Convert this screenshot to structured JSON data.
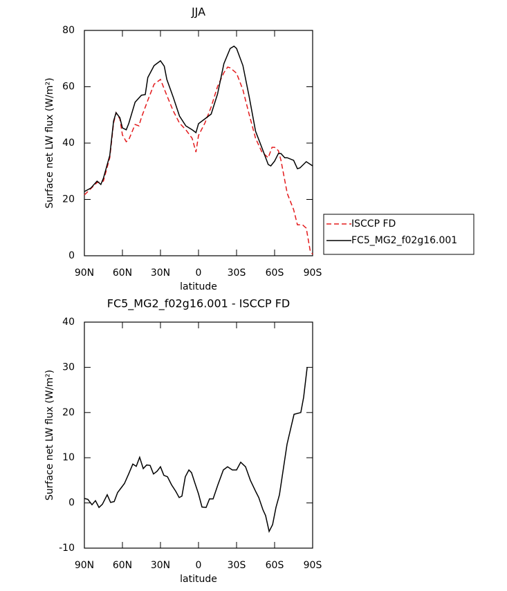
{
  "chart_data": [
    {
      "type": "line",
      "title": "JJA",
      "xlabel": "latitude",
      "ylabel": "Surface net LW flux (W/m²)",
      "xlim": [
        90,
        -90
      ],
      "xticks": [
        {
          "value": 90,
          "label": "90N"
        },
        {
          "value": 60,
          "label": "60N"
        },
        {
          "value": 30,
          "label": "30N"
        },
        0,
        {
          "value": -30,
          "label": "30S"
        },
        {
          "value": -60,
          "label": "60S"
        },
        {
          "value": -90,
          "label": "90S"
        }
      ],
      "ylim": [
        0,
        80
      ],
      "yticks": [
        0,
        20,
        40,
        60,
        80
      ],
      "legend": "right",
      "series": [
        {
          "name": "ISCCP FD",
          "color": "#e31a1c",
          "dash": true,
          "x": [
            90,
            85,
            80,
            75,
            70,
            67,
            65,
            62,
            60,
            57,
            55,
            50,
            47,
            45,
            40,
            35,
            30,
            25,
            20,
            15,
            10,
            5,
            2,
            0,
            -5,
            -10,
            -15,
            -20,
            -23,
            -25,
            -30,
            -35,
            -40,
            -45,
            -50,
            -55,
            -58,
            -60,
            -63,
            -65,
            -70,
            -75,
            -78,
            -82,
            -85,
            -88,
            -90
          ],
          "values": [
            21.6,
            23.8,
            26,
            26.5,
            34.8,
            47.1,
            50.8,
            48.6,
            42.9,
            40.5,
            41.2,
            46.6,
            46.1,
            49.1,
            55.2,
            60.9,
            62.6,
            56.9,
            51.5,
            47.1,
            44.7,
            41.7,
            36.8,
            42.7,
            47.1,
            52.8,
            60.1,
            65,
            67,
            66.7,
            64.8,
            58.9,
            50.1,
            41.7,
            36.8,
            34.8,
            38.5,
            38.5,
            37.3,
            33.9,
            22.1,
            16.4,
            11,
            11,
            9.8,
            2,
            0.5
          ]
        },
        {
          "name": "FC5_MG2_f02g16.001",
          "color": "#000000",
          "dash": false,
          "x": [
            90,
            85,
            80,
            77,
            75,
            70,
            67,
            65,
            62,
            60,
            57,
            55,
            50,
            45,
            42,
            40,
            35,
            30,
            27,
            25,
            20,
            15,
            10,
            5,
            2,
            0,
            -5,
            -10,
            -15,
            -20,
            -25,
            -28,
            -30,
            -35,
            -40,
            -45,
            -50,
            -55,
            -57,
            -60,
            -63,
            -65,
            -68,
            -70,
            -75,
            -78,
            -80,
            -85,
            -90
          ],
          "values": [
            22.8,
            24,
            26.5,
            25.3,
            27.5,
            35.6,
            47.8,
            50.8,
            49,
            45.4,
            44.7,
            47,
            54.5,
            57,
            57.2,
            63.3,
            67.5,
            69.2,
            67.3,
            62.6,
            56.4,
            49.6,
            46.1,
            44.7,
            43.7,
            46.9,
            48.6,
            50.3,
            57.4,
            68.2,
            73.6,
            74.4,
            73.6,
            67.5,
            56.4,
            44.2,
            38.3,
            32.4,
            31.9,
            33.6,
            36.3,
            36.3,
            34.8,
            34.8,
            33.9,
            30.9,
            31.2,
            33.4,
            31.9
          ]
        }
      ]
    },
    {
      "type": "line",
      "title": "FC5_MG2_f02g16.001 - ISCCP FD",
      "xlabel": "latitude",
      "ylabel": "Surface net LW flux (W/m²)",
      "xlim": [
        90,
        -90
      ],
      "xticks": [
        {
          "value": 90,
          "label": "90N"
        },
        {
          "value": 60,
          "label": "60N"
        },
        {
          "value": 30,
          "label": "30N"
        },
        0,
        {
          "value": -30,
          "label": "30S"
        },
        {
          "value": -60,
          "label": "60S"
        },
        {
          "value": -90,
          "label": "90S"
        }
      ],
      "ylim": [
        -10,
        40
      ],
      "yticks": [
        -10,
        0,
        10,
        20,
        30,
        40
      ],
      "color": "#000000",
      "x": [
        90,
        87.3,
        84,
        81.3,
        78.5,
        75.8,
        72,
        69.3,
        66.5,
        63.8,
        61.1,
        58.4,
        55.1,
        51.8,
        49.1,
        46.4,
        43.6,
        40.9,
        38.2,
        35.5,
        32.7,
        30,
        27.3,
        24.5,
        21.3,
        18,
        15.3,
        13.1,
        10.4,
        7.6,
        5.5,
        2.7,
        0,
        -2.7,
        -6,
        -8.7,
        -11.5,
        -15.3,
        -19.6,
        -22.9,
        -26.7,
        -30,
        -33.3,
        -37.1,
        -40.9,
        -45.3,
        -47.5,
        -50.8,
        -52.9,
        -55.7,
        -58.4,
        -61.1,
        -63.8,
        -69.8,
        -75.3,
        -80.7,
        -82.9,
        -85.7
      ],
      "values": [
        1.0,
        0.8,
        -0.4,
        0.5,
        -1.0,
        -0.3,
        1.8,
        0.1,
        0.3,
        2.3,
        3.3,
        4.3,
        6.4,
        8.6,
        8.1,
        10.1,
        7.6,
        8.4,
        8.3,
        6.4,
        7.0,
        8.0,
        6.1,
        5.8,
        4.0,
        2.6,
        1.2,
        1.5,
        5.8,
        7.3,
        6.7,
        4.3,
        2.0,
        -0.9,
        -1.0,
        0.9,
        0.9,
        4.0,
        7.3,
        8.0,
        7.3,
        7.3,
        9.0,
        8.0,
        5.0,
        2.4,
        1.2,
        -1.5,
        -2.8,
        -6.3,
        -4.8,
        -1.0,
        1.8,
        13.0,
        19.6,
        20.0,
        23.4,
        30.0
      ]
    }
  ]
}
